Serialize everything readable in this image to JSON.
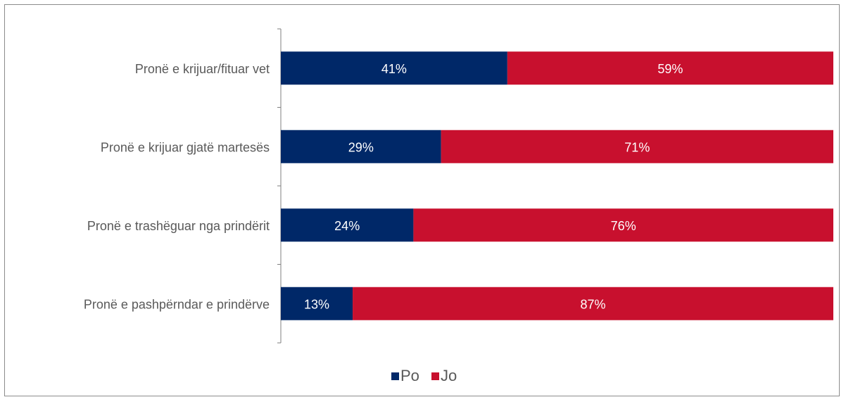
{
  "chart_data": {
    "type": "bar",
    "orientation": "horizontal",
    "stacked": true,
    "value_unit": "%",
    "categories": [
      "Pronë e krijuar/fituar vet",
      "Pronë e krijuar gjatë martesës",
      "Pronë e trashëguar nga prindërit",
      "Pronë e pashpërndar e prindërve"
    ],
    "series": [
      {
        "name": "Po",
        "color": "#002868",
        "values": [
          41,
          29,
          24,
          13
        ]
      },
      {
        "name": "Jo",
        "color": "#c8102e",
        "values": [
          59,
          71,
          76,
          87
        ]
      }
    ],
    "xlim": [
      0,
      100
    ],
    "legend_position": "bottom",
    "grid": false
  }
}
